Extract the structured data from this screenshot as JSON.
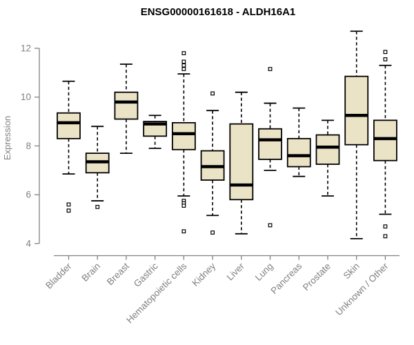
{
  "page": {
    "background_color": "#ffffff"
  },
  "chart_data": {
    "type": "boxplot",
    "title": "ENSG00000161618 - ALDH16A1",
    "xlabel": "",
    "ylabel": "Expression",
    "ylim": [
      4,
      12
    ],
    "yticks": [
      4,
      6,
      8,
      10,
      12
    ],
    "grid": "off",
    "legend": "none",
    "whisker_line_style": "dashed",
    "outlier_marker": "open-square",
    "categories": [
      "Bladder",
      "Brain",
      "Breast",
      "Gastric",
      "Hematopoietic cells",
      "Kidney",
      "Liver",
      "Lung",
      "Pancreas",
      "Prostate",
      "Skin",
      "Unknown / Other"
    ],
    "boxes": [
      {
        "category": "Bladder",
        "whisker_low": 6.85,
        "q1": 8.3,
        "median": 8.95,
        "q3": 9.35,
        "whisker_high": 10.65,
        "outliers": [
          5.6,
          5.35
        ]
      },
      {
        "category": "Brain",
        "whisker_low": 5.75,
        "q1": 6.9,
        "median": 7.35,
        "q3": 7.7,
        "whisker_high": 8.8,
        "outliers": [
          5.5
        ]
      },
      {
        "category": "Breast",
        "whisker_low": 7.7,
        "q1": 9.1,
        "median": 9.8,
        "q3": 10.2,
        "whisker_high": 11.35,
        "outliers": []
      },
      {
        "category": "Gastric",
        "whisker_low": 7.9,
        "q1": 8.4,
        "median": 8.9,
        "q3": 9.0,
        "whisker_high": 9.25,
        "outliers": []
      },
      {
        "category": "Hematopoietic cells",
        "whisker_low": 5.95,
        "q1": 7.85,
        "median": 8.5,
        "q3": 8.95,
        "whisker_high": 10.95,
        "outliers": [
          11.8,
          11.45,
          11.3,
          11.15,
          5.75,
          5.65,
          5.55,
          4.5
        ]
      },
      {
        "category": "Kidney",
        "whisker_low": 5.15,
        "q1": 6.6,
        "median": 7.15,
        "q3": 7.8,
        "whisker_high": 9.45,
        "outliers": [
          10.15,
          4.45
        ]
      },
      {
        "category": "Liver",
        "whisker_low": 4.4,
        "q1": 5.8,
        "median": 6.4,
        "q3": 8.9,
        "whisker_high": 10.2,
        "outliers": []
      },
      {
        "category": "Lung",
        "whisker_low": 7.0,
        "q1": 7.45,
        "median": 8.25,
        "q3": 8.7,
        "whisker_high": 9.75,
        "outliers": [
          11.15,
          4.75
        ]
      },
      {
        "category": "Pancreas",
        "whisker_low": 6.75,
        "q1": 7.15,
        "median": 7.6,
        "q3": 8.3,
        "whisker_high": 9.55,
        "outliers": []
      },
      {
        "category": "Prostate",
        "whisker_low": 5.95,
        "q1": 7.25,
        "median": 7.95,
        "q3": 8.45,
        "whisker_high": 9.05,
        "outliers": []
      },
      {
        "category": "Skin",
        "whisker_low": 4.2,
        "q1": 8.05,
        "median": 9.25,
        "q3": 10.85,
        "whisker_high": 12.7,
        "outliers": []
      },
      {
        "category": "Unknown / Other",
        "whisker_low": 5.2,
        "q1": 7.4,
        "median": 8.3,
        "q3": 9.05,
        "whisker_high": 11.3,
        "outliers": [
          11.85,
          11.55,
          4.7,
          4.3
        ]
      }
    ],
    "colors": {
      "box_fill": "#EAE3C6",
      "box_stroke": "#000000",
      "median_color": "#000000",
      "whisker_color": "#000000",
      "axis_color": "#808080",
      "title_color": "#000000",
      "background": "#ffffff"
    }
  }
}
